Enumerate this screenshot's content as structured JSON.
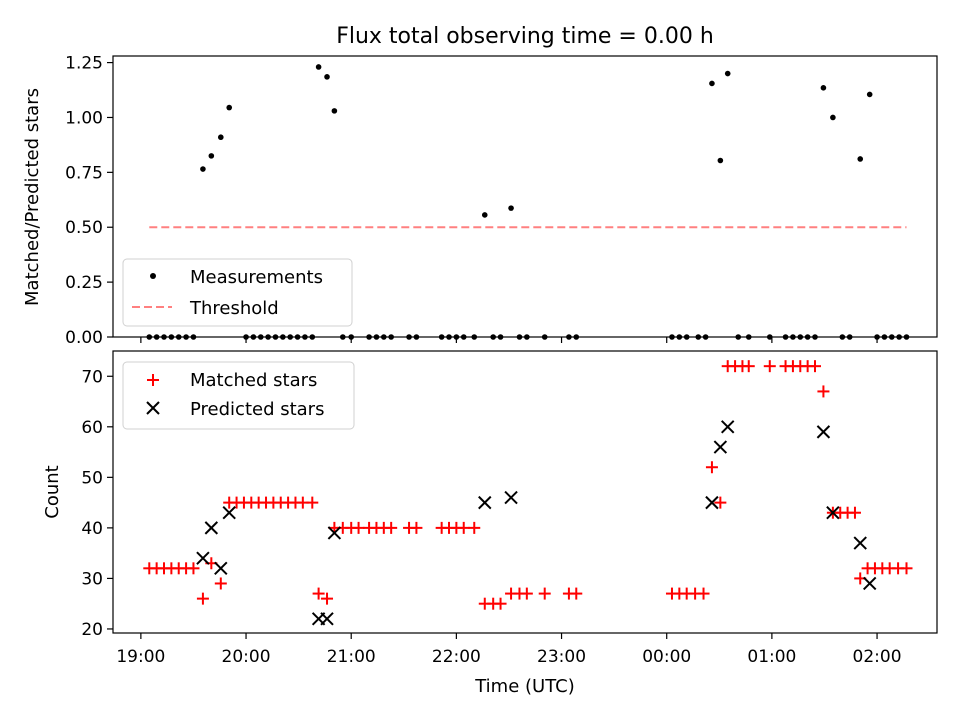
{
  "chart_data": [
    {
      "type": "scatter",
      "title": "Flux total observing time = 0.00 h",
      "xlabel": "",
      "ylabel": "Matched/Predicted stars",
      "xlim_hours": [
        18.735,
        26.57
      ],
      "ylim": [
        0.0,
        1.28
      ],
      "yticks": [
        0.0,
        0.25,
        0.5,
        0.75,
        1.0,
        1.25
      ],
      "ytick_labels": [
        "0.00",
        "0.25",
        "0.50",
        "0.75",
        "1.00",
        "1.25"
      ],
      "xticks_hours": [
        19,
        20,
        21,
        22,
        23,
        24,
        25,
        26
      ],
      "xtick_labels_visible": false,
      "legend_position": "lower-left",
      "series": [
        {
          "name": "Measurements",
          "marker": "dot",
          "color": "#000000",
          "x_hours": [
            19.08,
            19.15,
            19.22,
            19.29,
            19.36,
            19.43,
            19.5,
            19.59,
            19.67,
            19.76,
            19.84,
            20.0,
            20.07,
            20.14,
            20.21,
            20.28,
            20.35,
            20.42,
            20.49,
            20.56,
            20.63,
            20.69,
            20.77,
            20.84,
            20.92,
            21.0,
            21.17,
            21.24,
            21.31,
            21.38,
            21.55,
            21.62,
            21.86,
            21.93,
            22.0,
            22.07,
            22.17,
            22.27,
            22.35,
            22.42,
            22.52,
            22.6,
            22.67,
            22.84,
            23.07,
            23.14,
            24.05,
            24.12,
            24.19,
            24.3,
            24.37,
            24.43,
            24.51,
            24.58,
            24.68,
            24.78,
            24.98,
            25.13,
            25.2,
            25.27,
            25.34,
            25.41,
            25.49,
            25.58,
            25.67,
            25.74,
            25.84,
            25.93,
            26.0,
            26.07,
            26.14,
            26.21,
            26.28
          ],
          "y": [
            0.0,
            0.0,
            0.0,
            0.0,
            0.0,
            0.0,
            0.0,
            0.765,
            0.825,
            0.91,
            1.045,
            0.0,
            0.0,
            0.0,
            0.0,
            0.0,
            0.0,
            0.0,
            0.0,
            0.0,
            0.0,
            1.23,
            1.185,
            1.03,
            0.0,
            0.0,
            0.0,
            0.0,
            0.0,
            0.0,
            0.0,
            0.0,
            0.0,
            0.0,
            0.0,
            0.0,
            0.0,
            0.556,
            0.0,
            0.0,
            0.587,
            0.0,
            0.0,
            0.0,
            0.0,
            0.0,
            0.0,
            0.0,
            0.0,
            0.0,
            0.0,
            1.155,
            0.804,
            1.2,
            0.0,
            0.0,
            0.0,
            0.0,
            0.0,
            0.0,
            0.0,
            0.0,
            1.135,
            1.0,
            0.0,
            0.0,
            0.811,
            1.105,
            0.0,
            0.0,
            0.0,
            0.0,
            0.0
          ]
        },
        {
          "name": "Threshold",
          "marker": "dashed-line",
          "color": "#ff8080",
          "x_hours": [
            19.08,
            26.28
          ],
          "y": [
            0.5,
            0.5
          ]
        }
      ]
    },
    {
      "type": "scatter",
      "title": "",
      "xlabel": "Time (UTC)",
      "ylabel": "Count",
      "xlim_hours": [
        18.735,
        26.57
      ],
      "ylim": [
        19.2,
        75.0
      ],
      "yticks": [
        20,
        30,
        40,
        50,
        60,
        70
      ],
      "ytick_labels": [
        "20",
        "30",
        "40",
        "50",
        "60",
        "70"
      ],
      "xticks_hours": [
        19,
        20,
        21,
        22,
        23,
        24,
        25,
        26
      ],
      "xtick_labels": [
        "19:00",
        "20:00",
        "21:00",
        "22:00",
        "23:00",
        "00:00",
        "01:00",
        "02:00"
      ],
      "legend_position": "upper-left",
      "series": [
        {
          "name": "Matched stars",
          "marker": "plus",
          "color": "#ff0000",
          "x_hours": [
            19.08,
            19.15,
            19.22,
            19.29,
            19.36,
            19.43,
            19.5,
            19.59,
            19.67,
            19.76,
            19.84,
            19.91,
            19.98,
            20.05,
            20.12,
            20.19,
            20.26,
            20.33,
            20.4,
            20.47,
            20.54,
            20.63,
            20.69,
            20.77,
            20.84,
            20.92,
            21.0,
            21.07,
            21.17,
            21.24,
            21.31,
            21.38,
            21.55,
            21.62,
            21.86,
            21.93,
            22.0,
            22.07,
            22.17,
            22.27,
            22.35,
            22.42,
            22.52,
            22.6,
            22.67,
            22.84,
            23.07,
            23.14,
            24.05,
            24.12,
            24.19,
            24.27,
            24.35,
            24.43,
            24.51,
            24.58,
            24.65,
            24.72,
            24.78,
            24.98,
            25.13,
            25.2,
            25.27,
            25.34,
            25.41,
            25.49,
            25.58,
            25.65,
            25.72,
            25.79,
            25.84,
            25.91,
            25.98,
            26.05,
            26.12,
            26.2,
            26.28
          ],
          "y": [
            32,
            32,
            32,
            32,
            32,
            32,
            32,
            26,
            33,
            29,
            45,
            45,
            45,
            45,
            45,
            45,
            45,
            45,
            45,
            45,
            45,
            45,
            27,
            26,
            40,
            40,
            40,
            40,
            40,
            40,
            40,
            40,
            40,
            40,
            40,
            40,
            40,
            40,
            40,
            25,
            25,
            25,
            27,
            27,
            27,
            27,
            27,
            27,
            27,
            27,
            27,
            27,
            27,
            52,
            45,
            72,
            72,
            72,
            72,
            72,
            72,
            72,
            72,
            72,
            72,
            67,
            43,
            43,
            43,
            43,
            30,
            32,
            32,
            32,
            32,
            32,
            32
          ]
        },
        {
          "name": "Predicted stars",
          "marker": "x",
          "color": "#000000",
          "x_hours": [
            19.59,
            19.67,
            19.76,
            19.84,
            20.69,
            20.77,
            20.84,
            22.27,
            22.52,
            24.43,
            24.51,
            24.58,
            25.49,
            25.58,
            25.84,
            25.93
          ],
          "y": [
            34,
            40,
            32,
            43,
            22,
            22,
            39,
            45,
            46,
            45,
            56,
            60,
            59,
            43,
            37,
            29
          ]
        }
      ]
    }
  ]
}
